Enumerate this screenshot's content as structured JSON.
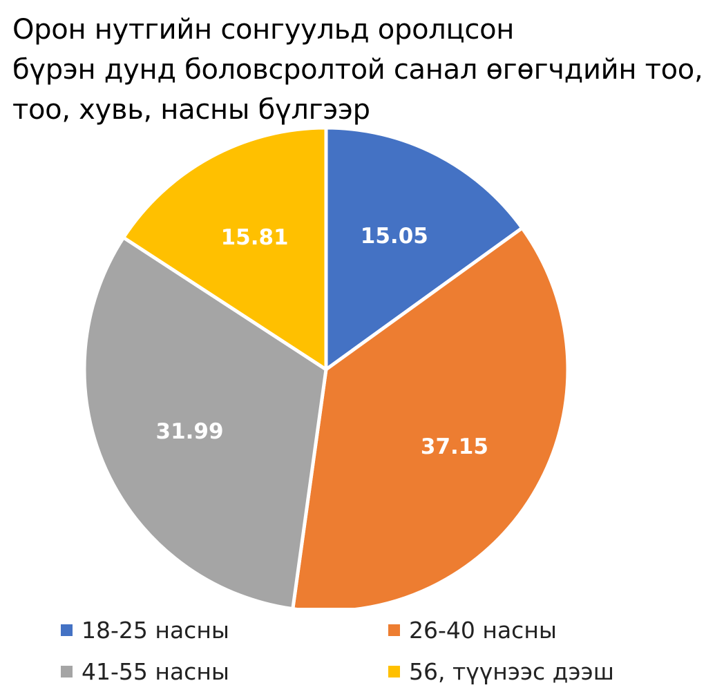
{
  "chart_data": {
    "type": "pie",
    "title": [
      "Орон нутгийн сонгуульд оролцсон",
      "бүрэн дунд боловсролтой санал өгөгчдийн тоо,",
      "тоо, хувь, насны бүлгээр"
    ],
    "categories": [
      "18-25 насны",
      "26-40 насны",
      "41-55 насны",
      "56, түүнээс дээш"
    ],
    "values": [
      15.05,
      37.15,
      31.99,
      15.81
    ],
    "value_labels": [
      "15.05",
      "37.15",
      "31.99",
      "15.81"
    ],
    "colors": [
      "#4472C4",
      "#ED7D31",
      "#A5A5A5",
      "#FFC000"
    ],
    "start": "12-o'clock",
    "direction": "clockwise",
    "legend_position": "bottom"
  }
}
